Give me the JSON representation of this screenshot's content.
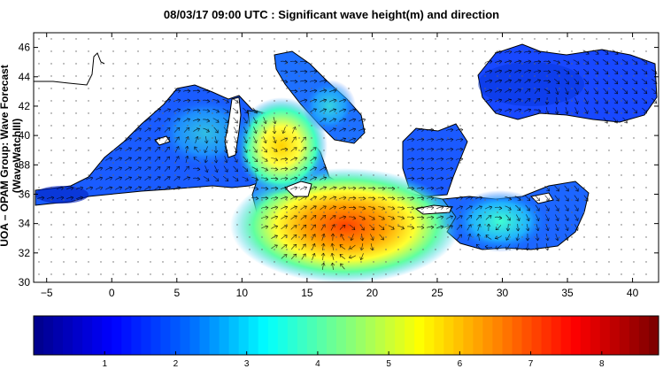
{
  "title": "08/03/17 09:00 UTC : Significant wave height(m) and direction",
  "y_axis_label": "UOA – OPAM Group: Wave Forecast  (WaveWatchIII)",
  "colors": {
    "low": "#00008f",
    "mid_low": "#0050ff",
    "mid": "#20e0e0",
    "mid_high": "#ffff00",
    "high": "#ff6000",
    "max": "#800000"
  },
  "map": {
    "lon_range": [
      -6,
      42
    ],
    "lat_range": [
      30,
      47
    ],
    "lon_ticks": [
      -5,
      0,
      5,
      10,
      15,
      20,
      25,
      30,
      35,
      40
    ],
    "lat_ticks": [
      30,
      32,
      34,
      36,
      38,
      40,
      42,
      44,
      46
    ],
    "lon_tick_labels": [
      "−5",
      "0",
      "5",
      "10",
      "15",
      "20",
      "25",
      "30",
      "35",
      "40"
    ],
    "lat_tick_labels": [
      "30",
      "32",
      "34",
      "36",
      "38",
      "40",
      "42",
      "44",
      "46"
    ]
  },
  "colorbar": {
    "range": [
      0,
      8.8
    ],
    "ticks": [
      1,
      2,
      3,
      4,
      5,
      6,
      7,
      8
    ],
    "tick_labels": [
      "1",
      "2",
      "3",
      "4",
      "5",
      "6",
      "7",
      "8"
    ]
  }
}
